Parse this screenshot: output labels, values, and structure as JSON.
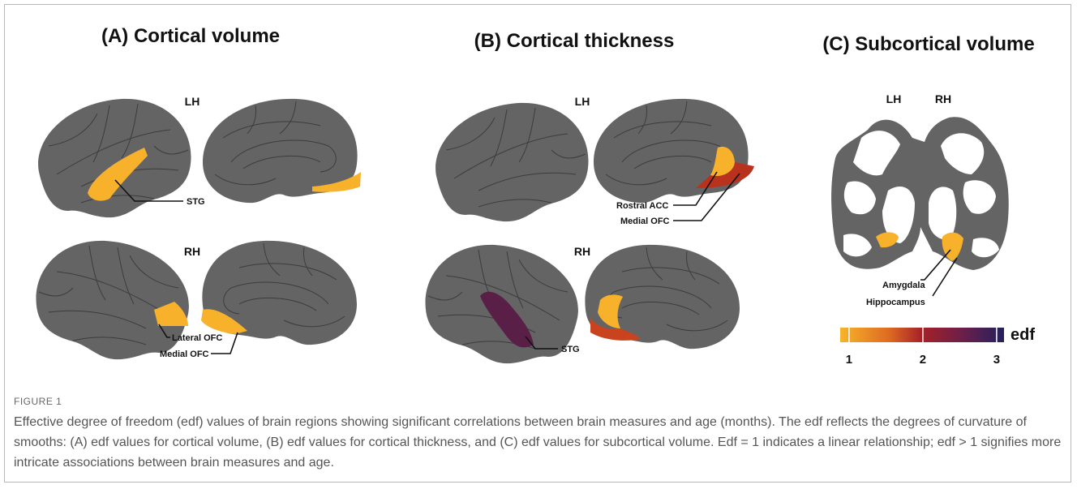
{
  "panels": [
    {
      "title": "(A) Cortical volume",
      "hemispheres": [
        "LH",
        "RH"
      ],
      "labels": [
        "STG",
        "Lateral OFC",
        "Medial OFC"
      ]
    },
    {
      "title": "(B) Cortical thickness",
      "hemispheres": [
        "LH",
        "RH"
      ],
      "labels": [
        "Rostral ACC",
        "Medial OFC",
        "STG"
      ]
    },
    {
      "title": "(C) Subcortical volume",
      "hemispheres": [
        "LH",
        "RH"
      ],
      "labels": [
        "Amygdala",
        "Hippocampus"
      ]
    }
  ],
  "colorbar": {
    "label": "edf",
    "range": [
      0.88,
      3.1
    ],
    "ticks": [
      1,
      2,
      3
    ]
  },
  "caption": {
    "label": "FIGURE 1",
    "text": "Effective degree of freedom (edf) values of brain regions showing significant correlations between brain measures and age (months). The edf reflects the degrees of curvature of smooths: (A) edf values for cortical volume, (B) edf values for cortical thickness, and (C) edf values for subcortical volume. Edf = 1 indicates a linear relationship; edf > 1 signifies more intricate associations between brain measures and age."
  }
}
